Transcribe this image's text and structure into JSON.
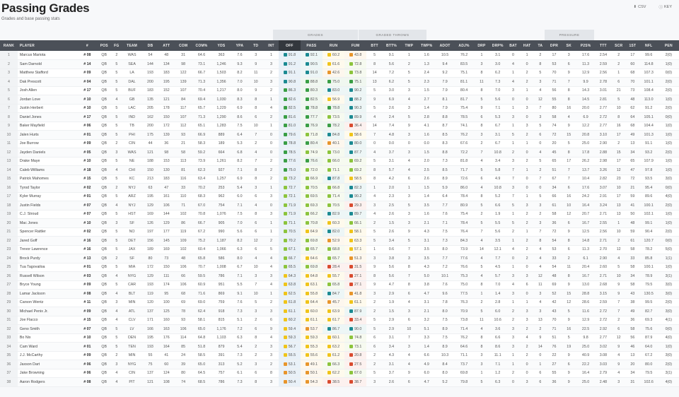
{
  "header": {
    "title": "Passing Grades",
    "subtitle": "Grades and base passing stats",
    "csv_label": "CSV",
    "key_label": "KEY",
    "csv_icon": "download-icon",
    "key_icon": "help-icon"
  },
  "groups": {
    "grades": "GRADES",
    "graded_throws": "GRADED THROWS",
    "pressure": "PRESSURE"
  },
  "columns": [
    "RANK",
    "PLAYER",
    "#",
    "POS",
    "FG",
    "TEAM",
    "DB",
    "ATT",
    "COM",
    "COM%",
    "YDS",
    "YPA",
    "TD",
    "INT",
    "OFF",
    "PASS",
    "RUN",
    "FUM",
    "BTT",
    "BTT%",
    "TWP",
    "TWP%",
    "ADOT",
    "ADJ%",
    "DRP",
    "DRP%",
    "BAT",
    "HAT",
    "TA",
    "DPR",
    "SK",
    "P2S%",
    "TTT",
    "SCR",
    "1ST",
    "NFL",
    "PEN"
  ],
  "grade_colors": {
    "elite": "#1b8a92",
    "high": "#3a9e45",
    "good": "#8cc43c",
    "avg": "#f0c419",
    "below": "#e8952b",
    "poor": "#d94b2f"
  },
  "rows": [
    [
      "1",
      "Marcus Mariota",
      "# 08",
      "QB",
      "2",
      "WAS",
      "54",
      "48",
      "31",
      "64.6",
      "363",
      "7.6",
      "3",
      "1",
      "91.8",
      "92.1",
      "60.2",
      "43.8",
      "5",
      "9.1",
      "1",
      "1.6",
      "10.5",
      "76.2",
      "1",
      "3.1",
      "0",
      "1",
      "2",
      "17",
      "3",
      "17.6",
      "2.54",
      "2",
      "17",
      "99.6",
      "2(0)"
    ],
    [
      "2",
      "Sam Darnold",
      "# 14",
      "QB",
      "5",
      "SEA",
      "144",
      "134",
      "98",
      "73.1",
      "1,246",
      "9.3",
      "9",
      "3",
      "91.2",
      "90.5",
      "61.6",
      "72.8",
      "8",
      "5.6",
      "2",
      "1.3",
      "9.4",
      "83.5",
      "3",
      "3.0",
      "4",
      "0",
      "8",
      "53",
      "6",
      "11.3",
      "2.59",
      "2",
      "60",
      "114.8",
      "1(0)"
    ],
    [
      "3",
      "Matthew Stafford",
      "# 09",
      "QB",
      "5",
      "LA",
      "193",
      "183",
      "122",
      "66.7",
      "1,503",
      "8.2",
      "11",
      "2",
      "91.1",
      "91.0",
      "42.6",
      "73.8",
      "14",
      "7.2",
      "5",
      "2.4",
      "9.2",
      "75.1",
      "8",
      "6.2",
      "1",
      "2",
      "5",
      "70",
      "9",
      "12.9",
      "2.56",
      "1",
      "68",
      "107.3",
      "0(0)"
    ],
    [
      "4",
      "Dak Prescott",
      "# 04",
      "QB",
      "5",
      "DAL",
      "200",
      "195",
      "139",
      "71.3",
      "1,356",
      "7.0",
      "10",
      "3",
      "90.8",
      "88.8",
      "75.0",
      "75.1",
      "13",
      "6.2",
      "5",
      "2.3",
      "7.9",
      "81.1",
      "11",
      "7.3",
      "4",
      "2",
      "3",
      "71",
      "7",
      "9.9",
      "2.78",
      "6",
      "70",
      "101.1",
      "2(0)"
    ],
    [
      "5",
      "Josh Allen",
      "# 17",
      "QB",
      "5",
      "BUF",
      "183",
      "152",
      "107",
      "70.4",
      "1,217",
      "8.0",
      "9",
      "2",
      "86.3",
      "80.3",
      "83.0",
      "90.2",
      "5",
      "3.0",
      "3",
      "1.5",
      "7.9",
      "80.4",
      "8",
      "7.0",
      "3",
      "1",
      "4",
      "56",
      "8",
      "14.3",
      "3.01",
      "21",
      "73",
      "108.4",
      "2(0)"
    ],
    [
      "6",
      "Jordan Love",
      "# 10",
      "QB",
      "4",
      "GB",
      "135",
      "121",
      "84",
      "69.4",
      "1,030",
      "8.3",
      "8",
      "1",
      "82.6",
      "82.5",
      "56.9",
      "88.2",
      "9",
      "6.9",
      "4",
      "2.7",
      "8.1",
      "81.7",
      "5",
      "5.6",
      "0",
      "0",
      "12",
      "55",
      "8",
      "14.5",
      "2.81",
      "5",
      "48",
      "113.0",
      "1(0)"
    ],
    [
      "7",
      "Justin Herbert",
      "# 10",
      "QB",
      "5",
      "LAC",
      "205",
      "178",
      "117",
      "65.7",
      "1,229",
      "6.9",
      "8",
      "4",
      "82.5",
      "78.8",
      "78.8",
      "90.3",
      "5",
      "2.6",
      "3",
      "1.4",
      "7.9",
      "75.4",
      "9",
      "7.1",
      "1",
      "3",
      "7",
      "80",
      "16",
      "20.0",
      "2.77",
      "10",
      "62",
      "91.2",
      "2(0)"
    ],
    [
      "8",
      "Daniel Jones",
      "# 17",
      "QB",
      "5",
      "IND",
      "162",
      "150",
      "107",
      "71.3",
      "1,290",
      "8.6",
      "6",
      "2",
      "81.6",
      "77.7",
      "73.5",
      "89.9",
      "4",
      "2.4",
      "5",
      "2.8",
      "8.8",
      "78.5",
      "6",
      "5.3",
      "3",
      "0",
      "3",
      "58",
      "4",
      "6.9",
      "2.72",
      "8",
      "64",
      "105.1",
      "0(0)"
    ],
    [
      "9",
      "Baker Mayfield",
      "# 06",
      "QB",
      "5",
      "TB",
      "200",
      "172",
      "112",
      "65.1",
      "1,283",
      "7.5",
      "10",
      "1",
      "81.0",
      "76.9",
      "78.2",
      "36.4",
      "14",
      "7.4",
      "9",
      "4.1",
      "8.7",
      "74.1",
      "8",
      "6.7",
      "1",
      "3",
      "5",
      "74",
      "9",
      "12.2",
      "2.77",
      "16",
      "68",
      "104.4",
      "1(0)"
    ],
    [
      "10",
      "Jalen Hurts",
      "# 01",
      "QB",
      "5",
      "PHI",
      "175",
      "139",
      "93",
      "66.9",
      "889",
      "6.4",
      "7",
      "0",
      "79.6",
      "71.8",
      "84.8",
      "58.6",
      "7",
      "4.8",
      "3",
      "1.6",
      "8.5",
      "76.2",
      "3",
      "3.1",
      "5",
      "2",
      "6",
      "72",
      "15",
      "20.8",
      "3.10",
      "17",
      "49",
      "101.3",
      "1(0)"
    ],
    [
      "11",
      "Joe Burrow",
      "# 09",
      "QB",
      "2",
      "CIN",
      "44",
      "36",
      "21",
      "58.3",
      "189",
      "5.3",
      "2",
      "0",
      "78.8",
      "80.4",
      "40.1",
      "80.0",
      "0",
      "0.0",
      "0",
      "0.0",
      "8.3",
      "67.6",
      "2",
      "6.7",
      "1",
      "1",
      "0",
      "20",
      "5",
      "25.0",
      "2.90",
      "2",
      "13",
      "91.1",
      "1(0)"
    ],
    [
      "12",
      "Jayden Daniels",
      "# 05",
      "QB",
      "3",
      "WAS",
      "121",
      "98",
      "58",
      "59.2",
      "664",
      "6.8",
      "4",
      "0",
      "78.5",
      "74.9",
      "73.0",
      "87.7",
      "4",
      "3.7",
      "3",
      "1.5",
      "8.8",
      "72.2",
      "7",
      "10.8",
      "2",
      "0",
      "4",
      "45",
      "8",
      "17.8",
      "2.88",
      "15",
      "34",
      "93.2",
      "2(0)"
    ],
    [
      "13",
      "Drake Maye",
      "# 10",
      "QB",
      "5",
      "NE",
      "188",
      "153",
      "113",
      "73.9",
      "1,261",
      "8.2",
      "7",
      "2",
      "77.6",
      "76.6",
      "66.0",
      "69.2",
      "5",
      "3.1",
      "4",
      "2.0",
      "7.3",
      "81.8",
      "4",
      "3.4",
      "3",
      "2",
      "5",
      "65",
      "17",
      "26.2",
      "2.98",
      "17",
      "65",
      "107.9",
      "1(0)"
    ],
    [
      "14",
      "Caleb Williams",
      "# 18",
      "QB",
      "4",
      "CHI",
      "150",
      "130",
      "81",
      "62.3",
      "927",
      "7.1",
      "8",
      "2",
      "75.0",
      "72.0",
      "71.1",
      "69.2",
      "8",
      "5.7",
      "4",
      "2.5",
      "8.5",
      "71.7",
      "5",
      "5.8",
      "7",
      "1",
      "2",
      "51",
      "7",
      "13.7",
      "3.26",
      "12",
      "47",
      "97.8",
      "1(0)"
    ],
    [
      "15",
      "Patrick Mahomes",
      "# 15",
      "QB",
      "5",
      "KC",
      "213",
      "183",
      "116",
      "63.4",
      "1,257",
      "6.9",
      "8",
      "2",
      "73.2",
      "66.9",
      "87.8",
      "58.5",
      "8",
      "4.2",
      "6",
      "2.6",
      "8.9",
      "72.6",
      "6",
      "4.9",
      "7",
      "0",
      "7",
      "67",
      "7",
      "10.4",
      "2.82",
      "23",
      "72",
      "93.5",
      "3(0)"
    ],
    [
      "16",
      "Tyrod Taylor",
      "# 02",
      "QB",
      "2",
      "NYJ",
      "63",
      "47",
      "33",
      "70.2",
      "253",
      "5.4",
      "3",
      "1",
      "72.7",
      "70.5",
      "66.8",
      "82.3",
      "1",
      "2.0",
      "1",
      "1.5",
      "5.9",
      "86.0",
      "4",
      "10.8",
      "3",
      "0",
      "0",
      "34",
      "6",
      "17.6",
      "3.07",
      "10",
      "21",
      "95.4",
      "0(0)"
    ],
    [
      "17",
      "Kyler Murray",
      "# 01",
      "QB",
      "5",
      "ARZ",
      "195",
      "161",
      "110",
      "68.3",
      "962",
      "6.0",
      "6",
      "3",
      "72.1",
      "69.5",
      "71.4",
      "90.2",
      "4",
      "2.3",
      "3",
      "1.4",
      "6.4",
      "78.4",
      "8",
      "5.2",
      "7",
      "1",
      "5",
      "66",
      "16",
      "24.2",
      "2.91",
      "17",
      "59",
      "89.6",
      "4(0)"
    ],
    [
      "18",
      "Justin Fields",
      "# 07",
      "QB",
      "4",
      "NYJ",
      "129",
      "106",
      "71",
      "67.0",
      "754",
      "7.1",
      "4",
      "0",
      "71.9",
      "69.3",
      "70.5",
      "29.3",
      "3",
      "2.5",
      "5",
      "3.5",
      "7.7",
      "80.9",
      "5",
      "6.6",
      "5",
      "3",
      "3",
      "61",
      "10",
      "16.4",
      "3.24",
      "13",
      "41",
      "100.1",
      "2(0)"
    ],
    [
      "19",
      "C.J. Stroud",
      "# 07",
      "QB",
      "5",
      "HST",
      "169",
      "144",
      "102",
      "70.8",
      "1,076",
      "7.5",
      "8",
      "3",
      "71.9",
      "66.2",
      "82.9",
      "89.7",
      "4",
      "2.6",
      "3",
      "1.6",
      "7.6",
      "75.4",
      "2",
      "1.9",
      "1",
      "2",
      "2",
      "58",
      "12",
      "20.7",
      "2.71",
      "13",
      "50",
      "102.1",
      "1(0)"
    ],
    [
      "20",
      "Mac Jones",
      "# 10",
      "QB",
      "3",
      "SF",
      "126",
      "129",
      "86",
      "66.7",
      "905",
      "7.0",
      "6",
      "1",
      "71.1",
      "70.8",
      "60.3",
      "66.1",
      "2",
      "1.5",
      "3",
      "2.1",
      "7.1",
      "78.4",
      "5",
      "5.5",
      "5",
      "2",
      "3",
      "36",
      "6",
      "16.7",
      "2.55",
      "1",
      "48",
      "99.1",
      "1(0)"
    ],
    [
      "21",
      "Spencer Rattler",
      "# 02",
      "QB",
      "5",
      "NO",
      "197",
      "177",
      "119",
      "67.2",
      "990",
      "5.6",
      "6",
      "1",
      "70.5",
      "64.9",
      "82.0",
      "58.1",
      "5",
      "2.6",
      "9",
      "4.3",
      "7.5",
      "76.4",
      "7",
      "5.6",
      "2",
      "1",
      "7",
      "72",
      "9",
      "12.5",
      "2.56",
      "10",
      "59",
      "90.4",
      "2(0)"
    ],
    [
      "22",
      "Jared Goff",
      "# 16",
      "QB",
      "5",
      "DET",
      "156",
      "145",
      "109",
      "75.2",
      "1,187",
      "8.2",
      "12",
      "2",
      "70.2",
      "69.8",
      "52.9",
      "63.3",
      "5",
      "3.4",
      "5",
      "3.1",
      "7.3",
      "84.3",
      "4",
      "3.5",
      "1",
      "2",
      "8",
      "54",
      "8",
      "14.8",
      "2.71",
      "2",
      "61",
      "120.7",
      "0(0)"
    ],
    [
      "23",
      "Trevor Lawrence",
      "# 16",
      "QB",
      "5",
      "JAX",
      "189",
      "169",
      "102",
      "60.4",
      "1,066",
      "6.3",
      "6",
      "5",
      "67.1",
      "65.7",
      "68.8",
      "57.1",
      "1",
      "0.6",
      "7",
      "3.5",
      "8.0",
      "73.9",
      "14",
      "12.1",
      "4",
      "2",
      "4",
      "53",
      "6",
      "11.3",
      "2.70",
      "12",
      "58",
      "78.2",
      "5(0)"
    ],
    [
      "24",
      "Brock Purdy",
      "# 13",
      "QB",
      "2",
      "SF",
      "80",
      "73",
      "48",
      "65.8",
      "586",
      "8.0",
      "4",
      "4",
      "66.7",
      "64.6",
      "65.7",
      "51.3",
      "3",
      "3.8",
      "3",
      "3.5",
      "7.7",
      "77.6",
      "4",
      "7.7",
      "0",
      "2",
      "4",
      "33",
      "2",
      "6.1",
      "2.90",
      "4",
      "33",
      "85.8",
      "1(1)"
    ],
    [
      "25",
      "Tua Tagovailoa",
      "# 01",
      "QB",
      "5",
      "MIA",
      "172",
      "150",
      "106",
      "70.7",
      "1,008",
      "6.7",
      "10",
      "4",
      "65.5",
      "69.8",
      "28.4",
      "31.5",
      "9",
      "5.6",
      "8",
      "4.3",
      "7.2",
      "76.6",
      "5",
      "4.5",
      "1",
      "0",
      "4",
      "54",
      "11",
      "20.4",
      "2.60",
      "5",
      "58",
      "100.1",
      "1(0)"
    ],
    [
      "26",
      "Russell Wilson",
      "# 03",
      "QB",
      "4",
      "NYG",
      "129",
      "111",
      "66",
      "59.5",
      "786",
      "7.1",
      "3",
      "3",
      "64.3",
      "64.8",
      "55.7",
      "27.1",
      "8",
      "5.6",
      "7",
      "5.0",
      "10.1",
      "75.3",
      "4",
      "5.7",
      "3",
      "3",
      "12",
      "48",
      "8",
      "16.7",
      "2.71",
      "10",
      "34",
      "78.9",
      "3(1)"
    ],
    [
      "27",
      "Bryce Young",
      "# 09",
      "QB",
      "5",
      "CAR",
      "193",
      "174",
      "106",
      "60.9",
      "951",
      "5.5",
      "7",
      "4",
      "63.8",
      "63.1",
      "65.8",
      "27.1",
      "9",
      "4.7",
      "8",
      "3.8",
      "7.6",
      "75.0",
      "8",
      "7.0",
      "4",
      "6",
      "11",
      "69",
      "9",
      "13.0",
      "2.68",
      "9",
      "58",
      "79.5",
      "3(0)"
    ],
    [
      "28",
      "Lamar Jackson",
      "# 08",
      "QB",
      "4",
      "BLT",
      "119",
      "95",
      "68",
      "71.6",
      "869",
      "9.1",
      "10",
      "1",
      "62.5",
      "55.8",
      "84.7",
      "41.8",
      "3",
      "2.9",
      "6",
      "4.7",
      "9.6",
      "77.5",
      "1",
      "1.4",
      "3",
      "0",
      "3",
      "52",
      "15",
      "28.8",
      "3.15",
      "9",
      "43",
      "130.5",
      "3(0)"
    ],
    [
      "29",
      "Carson Wentz",
      "# 11",
      "QB",
      "3",
      "MIN",
      "120",
      "100",
      "69",
      "69.0",
      "759",
      "7.6",
      "5",
      "2",
      "61.8",
      "64.4",
      "45.7",
      "61.1",
      "2",
      "1.9",
      "4",
      "3.1",
      "7.8",
      "76.3",
      "2",
      "2.8",
      "1",
      "1",
      "4",
      "42",
      "12",
      "28.6",
      "2.59",
      "7",
      "38",
      "99.5",
      "2(0)"
    ],
    [
      "30",
      "Michael Penix Jr.",
      "# 09",
      "QB",
      "4",
      "ATL",
      "137",
      "125",
      "78",
      "62.4",
      "918",
      "7.3",
      "3",
      "3",
      "61.1",
      "60.0",
      "63.9",
      "87.9",
      "2",
      "1.5",
      "3",
      "2.1",
      "8.0",
      "70.9",
      "5",
      "6.0",
      "2",
      "3",
      "3",
      "43",
      "5",
      "11.6",
      "2.72",
      "7",
      "49",
      "82.7",
      "3(0)"
    ],
    [
      "31",
      "Joe Flacco",
      "# 15",
      "QB",
      "4",
      "CLV",
      "171",
      "160",
      "93",
      "58.1",
      "815",
      "5.1",
      "2",
      "6",
      "60.2",
      "61.1",
      "61.7",
      "33.4",
      "5",
      "2.9",
      "6",
      "3.2",
      "7.5",
      "73.8",
      "11",
      "10.6",
      "2",
      "3",
      "13",
      "70",
      "9",
      "12.9",
      "2.72",
      "2",
      "36",
      "69.3",
      "4(1)"
    ],
    [
      "32",
      "Geno Smith",
      "# 07",
      "QB",
      "5",
      "LV",
      "166",
      "163",
      "106",
      "65.0",
      "1,176",
      "7.2",
      "6",
      "9",
      "59.4",
      "53.7",
      "86.7",
      "90.0",
      "5",
      "2.9",
      "10",
      "5.1",
      "8.9",
      "71.4",
      "4",
      "3.6",
      "3",
      "2",
      "2",
      "71",
      "16",
      "22.5",
      "2.92",
      "6",
      "58",
      "75.6",
      "0(0)"
    ],
    [
      "33",
      "Bo Nix",
      "# 10",
      "QB",
      "5",
      "DEN",
      "195",
      "176",
      "114",
      "64.8",
      "1,103",
      "6.3",
      "8",
      "4",
      "59.3",
      "59.3",
      "60.1",
      "74.8",
      "6",
      "3.1",
      "7",
      "3.3",
      "7.5",
      "76.2",
      "8",
      "6.6",
      "3",
      "4",
      "9",
      "51",
      "5",
      "9.8",
      "2.77",
      "12",
      "56",
      "87.9",
      "4(0)"
    ],
    [
      "34",
      "Cam Ward",
      "# 01",
      "QB",
      "5",
      "TEN",
      "193",
      "164",
      "85",
      "51.8",
      "879",
      "5.4",
      "2",
      "3",
      "56.7",
      "55.3",
      "63.2",
      "73.1",
      "6",
      "3.4",
      "3",
      "1.4",
      "8.9",
      "64.6",
      "8",
      "8.6",
      "3",
      "2",
      "14",
      "76",
      "19",
      "25.0",
      "3.02",
      "9",
      "46",
      "64.0",
      "1(0)"
    ],
    [
      "35",
      "J.J. McCarthy",
      "# 09",
      "QB",
      "2",
      "MIN",
      "55",
      "41",
      "24",
      "58.5",
      "391",
      "7.3",
      "2",
      "3",
      "55.5",
      "55.6",
      "61.2",
      "20.8",
      "2",
      "4.3",
      "4",
      "6.6",
      "10.3",
      "71.1",
      "3",
      "11.1",
      "1",
      "2",
      "0",
      "22",
      "9",
      "40.9",
      "3.08",
      "4",
      "13",
      "67.2",
      "3(0)"
    ],
    [
      "36",
      "Jaxson Dart",
      "# 06",
      "QB",
      "3",
      "NYG",
      "75",
      "60",
      "39",
      "65.0",
      "313",
      "5.2",
      "3",
      "2",
      "53.1",
      "49.1",
      "66.3",
      "27.5",
      "2",
      "3.1",
      "4",
      "4.9",
      "8.4",
      "73.7",
      "3",
      "7.1",
      "1",
      "0",
      "1",
      "27",
      "6",
      "22.2",
      "3.03",
      "9",
      "20",
      "80.0",
      "2(0)"
    ],
    [
      "37",
      "Jake Browning",
      "# 06",
      "QB",
      "4",
      "CIN",
      "137",
      "124",
      "80",
      "64.5",
      "757",
      "6.1",
      "6",
      "8",
      "50.5",
      "50.1",
      "62.2",
      "67.0",
      "5",
      "3.7",
      "9",
      "6.0",
      "8.0",
      "69.8",
      "1",
      "1.2",
      "2",
      "0",
      "6",
      "55",
      "9",
      "16.4",
      "2.79",
      "4",
      "34",
      "79.5",
      "3(1)"
    ],
    [
      "38",
      "Aaron Rodgers",
      "# 08",
      "QB",
      "4",
      "PIT",
      "121",
      "108",
      "74",
      "68.5",
      "786",
      "7.3",
      "8",
      "3",
      "50.4",
      "54.3",
      "38.5",
      "38.7",
      "3",
      "2.6",
      "6",
      "4.7",
      "5.2",
      "79.8",
      "5",
      "6.3",
      "0",
      "3",
      "6",
      "36",
      "9",
      "25.0",
      "2.48",
      "3",
      "31",
      "102.6",
      "4(0)"
    ]
  ]
}
